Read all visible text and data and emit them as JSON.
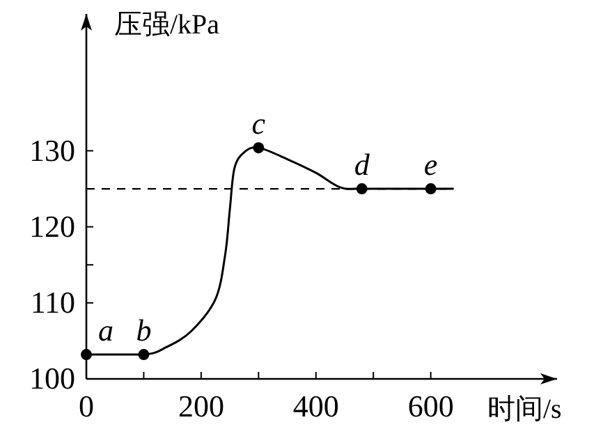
{
  "chart_data": {
    "type": "line",
    "xlabel": "时间/s",
    "ylabel": "压强/kPa",
    "xlim": [
      0,
      820
    ],
    "ylim": [
      100,
      148
    ],
    "xticks": [
      0,
      {
        "value": 100,
        "label": null
      },
      200,
      {
        "value": 300,
        "label": null
      },
      400,
      {
        "value": 500,
        "label": null
      },
      600
    ],
    "yticks": [
      100,
      110,
      {
        "value": 115,
        "label": null
      },
      120,
      130
    ],
    "grid": false,
    "series": [
      {
        "color": "#000000",
        "marker": "none",
        "x": [
          0,
          100,
          140,
          183,
          225,
          242,
          250,
          258,
          275,
          300,
          350,
          400,
          442,
          480,
          600,
          640
        ],
        "values": [
          103.2,
          103.2,
          104.2,
          106.3,
          110.5,
          116.4,
          122.3,
          127.7,
          129.8,
          130.4,
          128.9,
          127.1,
          125.2,
          125,
          125,
          125
        ]
      },
      {
        "type": "scatter",
        "color": "#000000",
        "marker": "circle",
        "x": [
          0,
          100,
          300,
          480,
          600
        ],
        "values": [
          103.2,
          103.2,
          130.4,
          125,
          125
        ]
      }
    ],
    "ref_lines": [
      {
        "axis": "y",
        "value": 125,
        "label": null,
        "color": "#000000",
        "line_style": "dashed"
      }
    ],
    "annotations": [
      {
        "text": "a",
        "x": 0,
        "y": 103.2
      },
      {
        "text": "b",
        "x": 100,
        "y": 103.2
      },
      {
        "text": "c",
        "x": 300,
        "y": 130.4
      },
      {
        "text": "d",
        "x": 480,
        "y": 125
      },
      {
        "text": "e",
        "x": 600,
        "y": 125
      }
    ]
  }
}
